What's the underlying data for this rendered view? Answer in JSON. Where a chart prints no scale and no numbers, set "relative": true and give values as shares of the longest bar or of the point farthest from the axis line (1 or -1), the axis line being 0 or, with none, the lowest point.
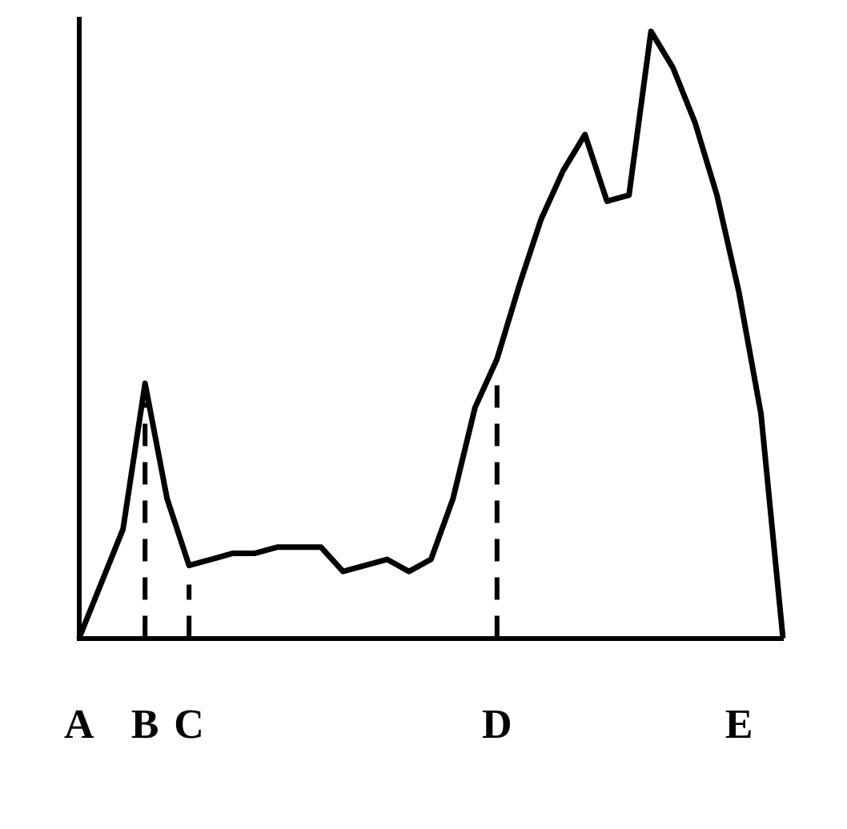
{
  "chart_data": {
    "type": "line",
    "relative": true,
    "tick_labels": "x",
    "grid": false,
    "legend": false,
    "marker": "none",
    "line_style": "solid",
    "categories": [
      "A",
      null,
      null,
      "B",
      null,
      "C",
      null,
      null,
      null,
      null,
      null,
      null,
      null,
      null,
      null,
      null,
      null,
      null,
      null,
      "D",
      null,
      null,
      null,
      null,
      null,
      null,
      null,
      null,
      null,
      null,
      "E",
      null,
      null
    ],
    "series": [
      {
        "color": "#000000",
        "values": [
          0,
          0.09,
          0.18,
          0.42,
          0.23,
          0.12,
          0.13,
          0.14,
          0.14,
          0.15,
          0.15,
          0.15,
          0.11,
          0.12,
          0.13,
          0.11,
          0.13,
          0.23,
          0.38,
          0.46,
          0.58,
          0.69,
          0.77,
          0.83,
          0.72,
          0.73,
          1,
          0.94,
          0.85,
          0.73,
          0.57,
          0.37,
          0
        ]
      }
    ],
    "ref_lines": [
      {
        "axis": "x",
        "value": "B",
        "line_style": "dashed",
        "color": "#000000"
      },
      {
        "axis": "x",
        "value": "C",
        "line_style": "dashed",
        "color": "#000000"
      },
      {
        "axis": "x",
        "value": "D",
        "line_style": "dashed",
        "color": "#000000"
      }
    ]
  }
}
